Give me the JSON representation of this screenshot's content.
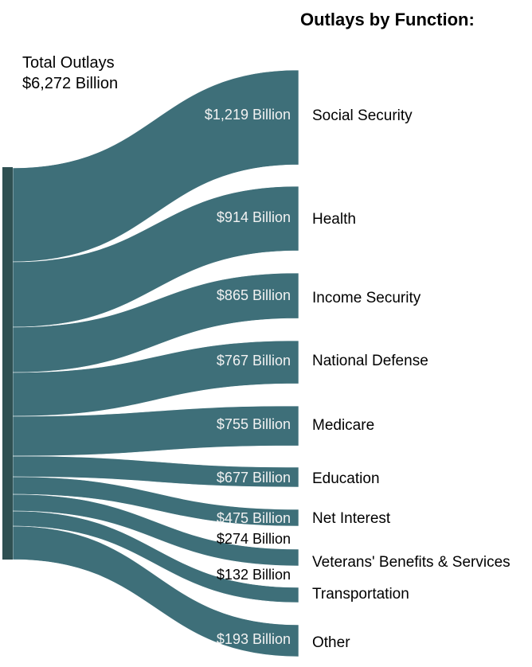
{
  "chart_data": {
    "type": "sankey",
    "title": "Outlays by Function:",
    "source": {
      "label": "Total Outlays",
      "value_label": "$6,272 Billion",
      "value": 6272
    },
    "unit": "Billion USD",
    "link_color": "#3e6f79",
    "node_color": "#2f5052",
    "targets": [
      {
        "name": "Social Security",
        "value": 1219,
        "value_label": "$1,219 Billion"
      },
      {
        "name": "Health",
        "value": 914,
        "value_label": "$914 Billion"
      },
      {
        "name": "Income Security",
        "value": 865,
        "value_label": "$865 Billion"
      },
      {
        "name": "National Defense",
        "value": 767,
        "value_label": "$767 Billion"
      },
      {
        "name": "Medicare",
        "value": 755,
        "value_label": "$755 Billion"
      },
      {
        "name": "Education",
        "value": 677,
        "value_label": "$677 Billion"
      },
      {
        "name": "Net Interest",
        "value": 475,
        "value_label": "$475 Billion"
      },
      {
        "name": "Veterans' Benefits & Services",
        "value": 274,
        "value_label": "$274 Billion"
      },
      {
        "name": "Transportation",
        "value": 132,
        "value_label": "$132 Billion"
      },
      {
        "name": "Other",
        "value": 193,
        "value_label": "$193 Billion"
      }
    ]
  }
}
